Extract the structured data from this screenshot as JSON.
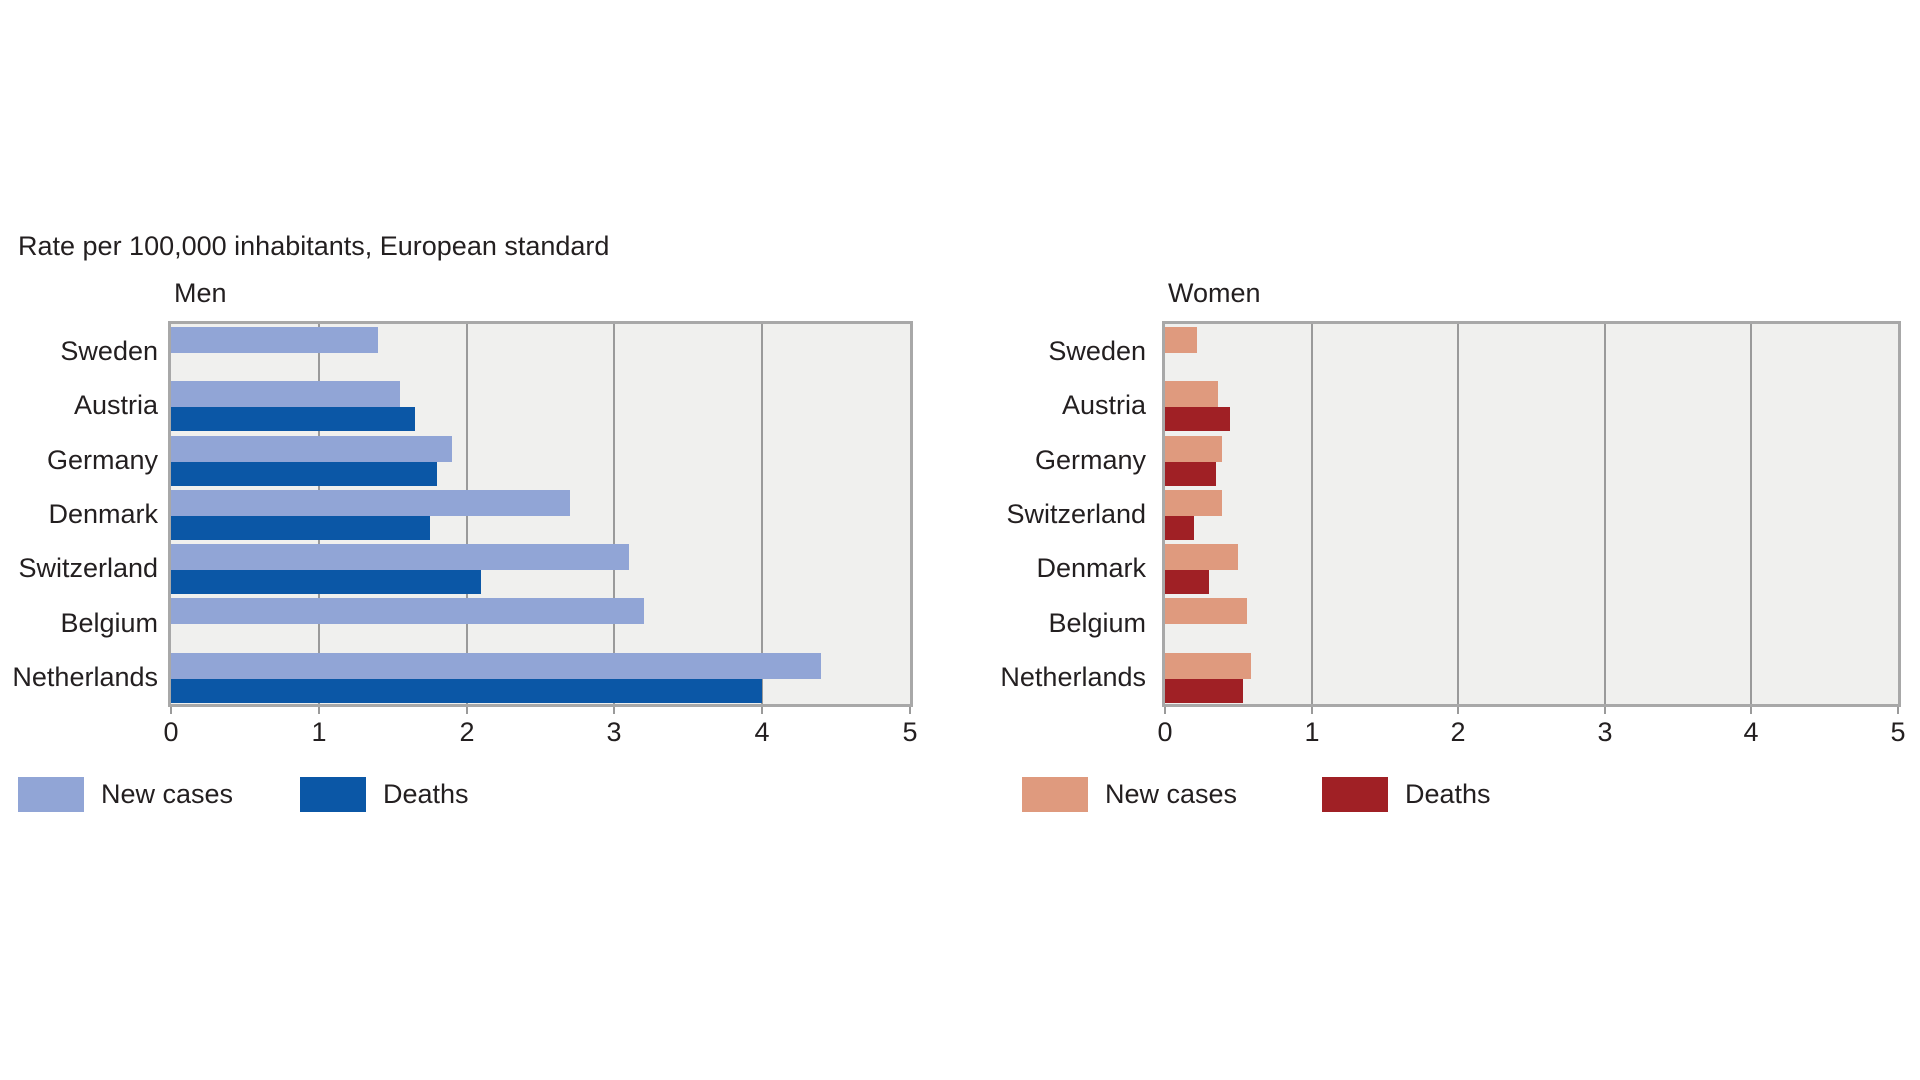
{
  "title": "Rate per 100,000 inhabitants, European standard",
  "chart_data": [
    {
      "type": "bar",
      "orientation": "horizontal",
      "title": "Men",
      "categories": [
        "Sweden",
        "Austria",
        "Germany",
        "Denmark",
        "Switzerland",
        "Belgium",
        "Netherlands"
      ],
      "series": [
        {
          "name": "New cases",
          "color": "#91a5d6",
          "values": [
            1.4,
            1.55,
            1.9,
            2.7,
            3.1,
            3.2,
            4.4
          ]
        },
        {
          "name": "Deaths",
          "color": "#0b57a6",
          "values": [
            null,
            1.65,
            1.8,
            1.75,
            2.1,
            null,
            4.0
          ]
        }
      ],
      "xlim": [
        0,
        5
      ],
      "x_ticks": [
        "0",
        "1",
        "2",
        "3",
        "4",
        "5"
      ],
      "grid": true,
      "plot_bg": "#f0f0ee",
      "grid_color": "#9a9a9a",
      "border_color": "#a8a8a8",
      "legend_position": "bottom"
    },
    {
      "type": "bar",
      "orientation": "horizontal",
      "title": "Women",
      "categories": [
        "Sweden",
        "Austria",
        "Germany",
        "Switzerland",
        "Denmark",
        "Belgium",
        "Netherlands"
      ],
      "series": [
        {
          "name": "New cases",
          "color": "#df9a7e",
          "values": [
            0.22,
            0.36,
            0.39,
            0.39,
            0.5,
            0.56,
            0.59
          ]
        },
        {
          "name": "Deaths",
          "color": "#a02025",
          "values": [
            null,
            0.44,
            0.35,
            0.2,
            0.3,
            null,
            0.53
          ]
        }
      ],
      "xlim": [
        0,
        5
      ],
      "x_ticks": [
        "0",
        "1",
        "2",
        "3",
        "4",
        "5"
      ],
      "grid": true,
      "plot_bg": "#f0f0ee",
      "grid_color": "#9a9a9a",
      "border_color": "#a8a8a8",
      "legend_position": "bottom"
    }
  ]
}
